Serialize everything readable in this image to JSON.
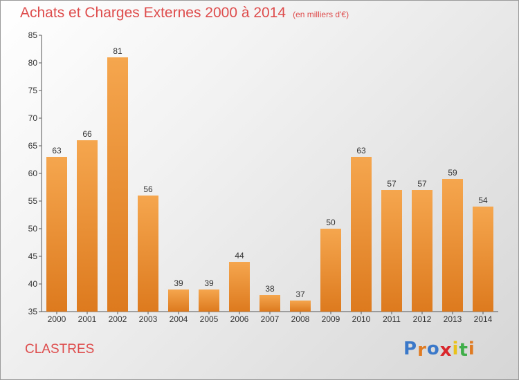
{
  "header": {
    "title": "Achats et Charges Externes 2000 à 2014",
    "subtitle": "(en milliers d'€)"
  },
  "footer": {
    "commune": "CLASTRES",
    "logo_text": "Proxiti"
  },
  "colors": {
    "title": "#de4c4c",
    "bar_top": "#f5a64e",
    "bar_bottom": "#dd7a1e",
    "axis": "#555555",
    "grid": "#d0d0d0",
    "logo": [
      "#3a78c9",
      "#e07b22",
      "#3a78c9",
      "#d9262b",
      "#e9c21a",
      "#3fae49",
      "#e07b22"
    ]
  },
  "chart_data": {
    "type": "bar",
    "categories": [
      "2000",
      "2001",
      "2002",
      "2003",
      "2004",
      "2005",
      "2006",
      "2007",
      "2008",
      "2009",
      "2010",
      "2011",
      "2012",
      "2013",
      "2014"
    ],
    "values": [
      63,
      66,
      81,
      56,
      39,
      39,
      44,
      38,
      37,
      50,
      63,
      57,
      57,
      59,
      54
    ],
    "ylim": [
      35,
      85
    ],
    "yticks": [
      35,
      40,
      45,
      50,
      55,
      60,
      65,
      70,
      75,
      80,
      85
    ],
    "grid": false,
    "legend": "none"
  }
}
